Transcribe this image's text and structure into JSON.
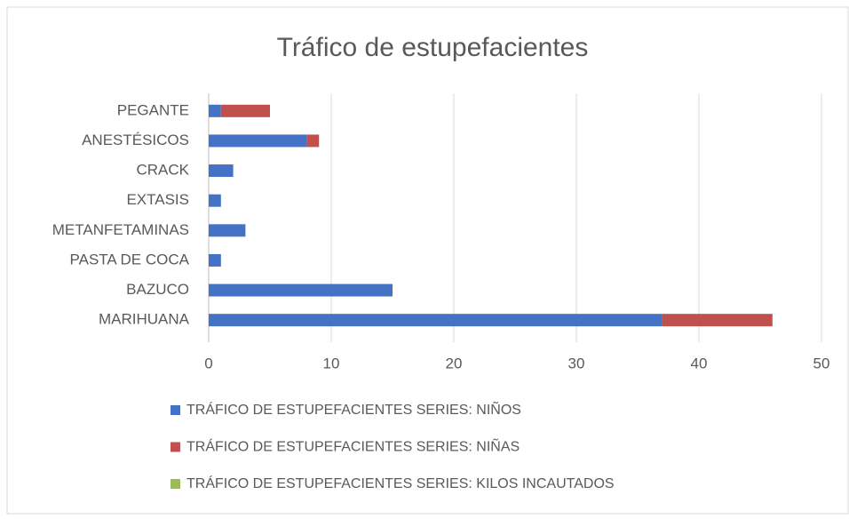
{
  "chart_data": {
    "type": "bar",
    "orientation": "horizontal",
    "stacked": true,
    "title": "Tráfico de estupefacientes",
    "categories": [
      "PEGANTE",
      "ANESTÉSICOS",
      "CRACK",
      "EXTASIS",
      "METANFETAMINAS",
      "PASTA DE COCA",
      "BAZUCO",
      "MARIHUANA"
    ],
    "series": [
      {
        "name": "TRÁFICO DE ESTUPEFACIENTES SERIES:  NIÑOS",
        "color": "#4472c4",
        "values": [
          1,
          8,
          2,
          1,
          3,
          1,
          15,
          37
        ]
      },
      {
        "name": "TRÁFICO DE ESTUPEFACIENTES SERIES:  NIÑAS",
        "color": "#c0504d",
        "values": [
          4,
          1,
          0,
          0,
          0,
          0,
          0,
          9
        ]
      },
      {
        "name": "TRÁFICO DE ESTUPEFACIENTES SERIES:  KILOS INCAUTADOS",
        "color": "#9bbb59",
        "values": [
          0,
          0,
          0,
          0,
          0,
          0,
          0,
          0
        ]
      }
    ],
    "xlim": [
      0,
      50
    ],
    "xticks": [
      0,
      10,
      20,
      30,
      40,
      50
    ],
    "grid": true,
    "legend": "bottom"
  }
}
